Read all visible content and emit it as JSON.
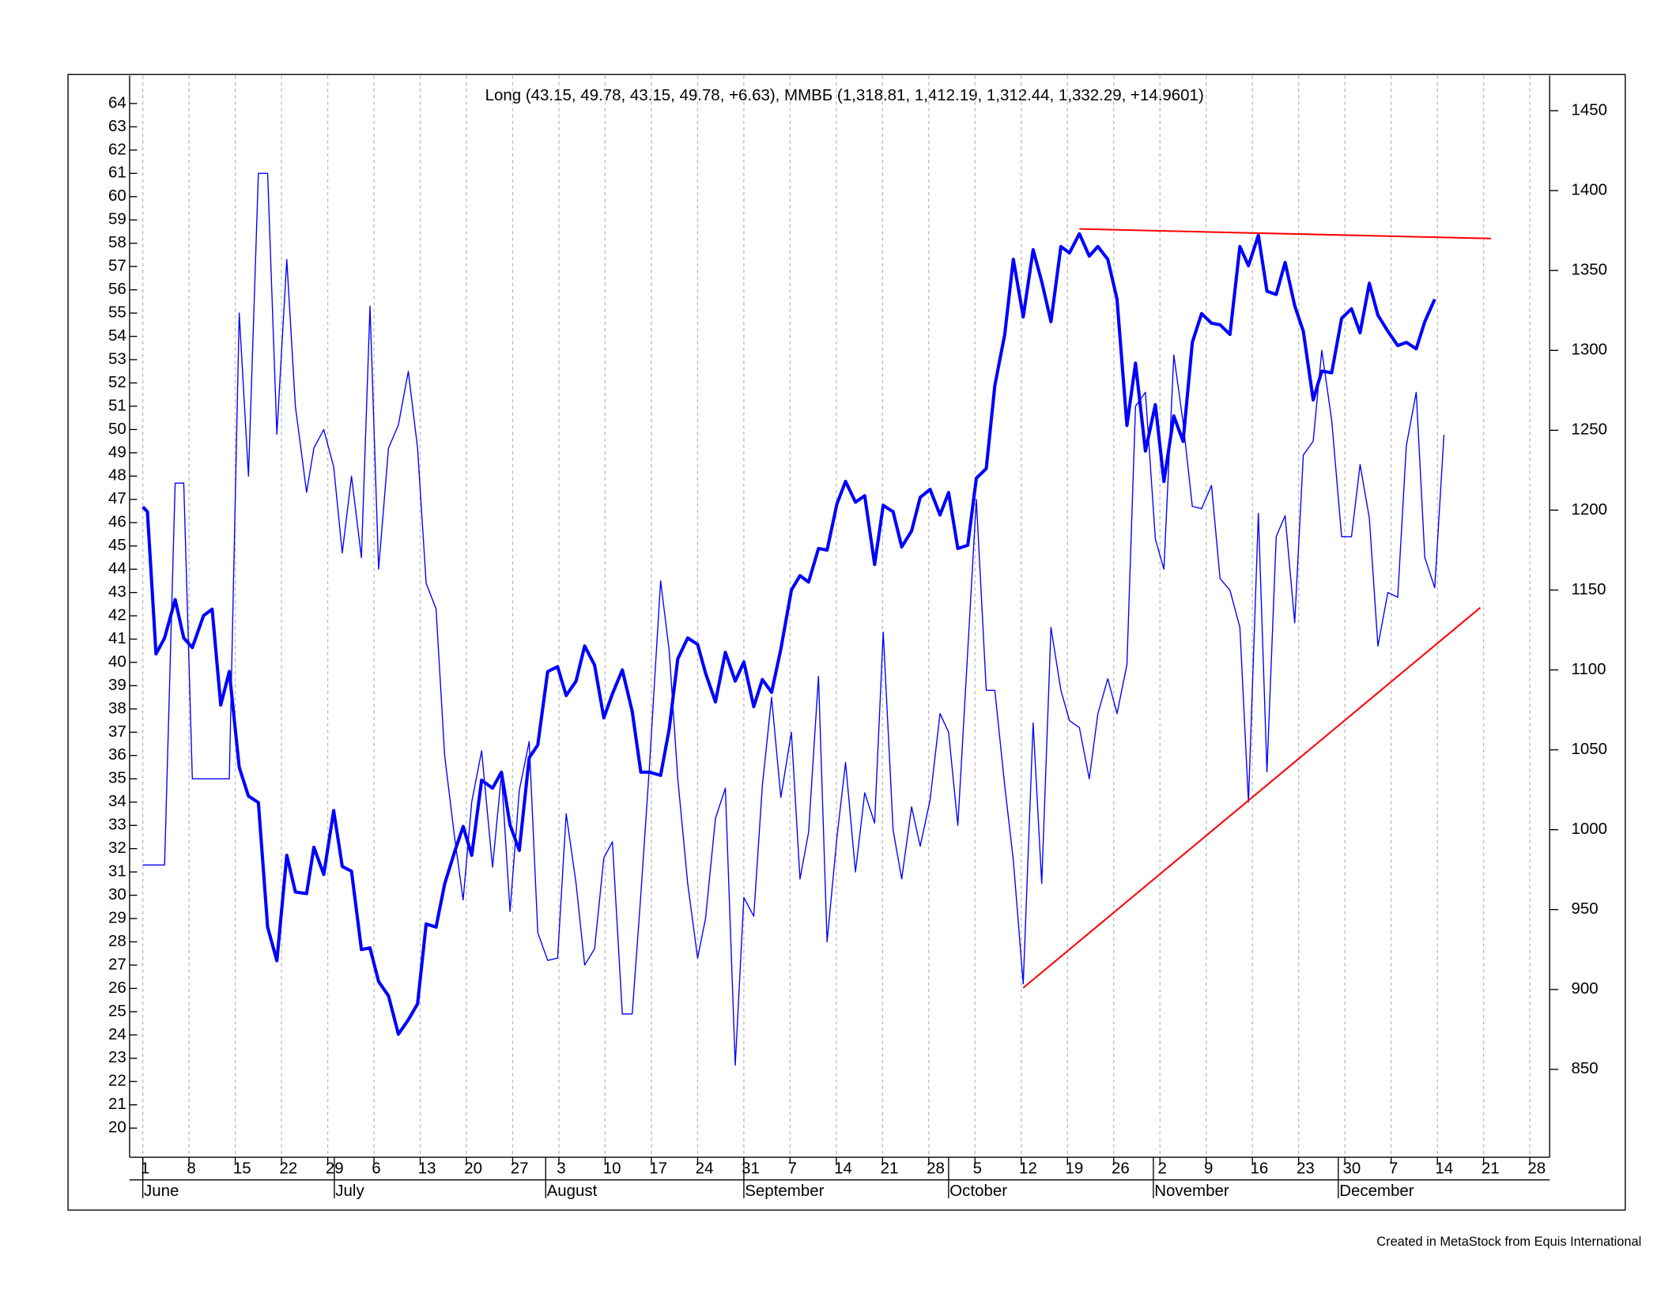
{
  "chart_data": {
    "type": "line",
    "title": "Long (43.15, 49.78, 43.15, 49.78, +6.63), ММВБ (1,318.81, 1,412.19, 1,312.44, 1,332.29, +14.9601)",
    "footer": "Created in MetaStock from Equis International",
    "x": [
      0,
      0.7,
      2,
      3.3,
      4.9,
      6.2,
      7.5,
      9.2,
      10.5,
      11.8,
      13.1,
      14.6,
      16,
      17.5,
      18.9,
      20.3,
      21.8,
      23.1,
      24.8,
      25.9,
      27.4,
      28.9,
      30.2,
      31.6,
      33.1,
      34.4,
      35.7,
      37.2,
      38.7,
      40.2,
      41.6,
      42.9,
      44.4,
      45.7,
      47.2,
      48.5,
      49.8,
      51.3,
      52.95,
      54.3,
      55.6,
      57,
      58.5,
      59.8,
      61.3,
      62.8,
      64.1,
      65.6,
      66.9,
      68.4,
      69.8,
      71.1,
      72.6,
      74.1,
      75.4,
      76.7,
      78.4,
      79.7,
      81,
      82.5,
      84,
      85.2,
      86.7,
      88.2,
      89.7,
      91,
      92.5,
      93.8,
      95.2,
      96.6,
      98.2,
      99.5,
      100.8,
      102.3,
      103.6,
      105.1,
      106.4,
      107.9,
      109.3,
      110.8,
      112.1,
      113.6,
      114.9,
      116.4,
      117.7,
      119.2,
      120.7,
      122,
      123.4,
      124.9,
      126.2,
      127.7,
      129,
      130.5,
      131.8,
      133.3,
      134.8,
      136.1,
      137.5,
      139,
      140.3,
      141.8,
      143.3,
      144.6,
      146.1,
      147.5,
      149,
      150.3,
      151.8,
      153.3,
      154.6,
      156.1,
      157.5,
      158.9,
      160.3,
      161.8,
      163.1,
      164.6,
      166.1,
      167.4,
      168.9,
      170.2,
      171.6,
      172.95,
      174.4,
      175.7,
      177.2,
      178.5,
      180,
      181.5,
      183,
      184.3,
      185.7,
      187,
      188.5,
      190,
      191.3,
      192.8,
      194.1,
      195.6,
      197
    ],
    "series": [
      {
        "color": "#0000ff",
        "width": 1,
        "axis": "y",
        "values": [
          31.3,
          31.3,
          31.3,
          31.3,
          47.7,
          47.7,
          35,
          35,
          35,
          35,
          35,
          55,
          48,
          61,
          61,
          49.8,
          57.3,
          51,
          47.3,
          49.2,
          50,
          48.4,
          44.7,
          48,
          44.5,
          55.3,
          44,
          49.2,
          50.2,
          52.5,
          49.2,
          43.4,
          42.3,
          36,
          32.5,
          29.8,
          34,
          36.2,
          31.2,
          35.2,
          29.3,
          34.5,
          36.6,
          28.4,
          27.2,
          27.3,
          33.5,
          30.5,
          27,
          27.7,
          31.6,
          32.3,
          24.9,
          24.9,
          30,
          35.5,
          43.5,
          40.5,
          35,
          30.5,
          27.3,
          29,
          33.3,
          34.6,
          22.7,
          29.9,
          29.1,
          34.7,
          38.5,
          34.2,
          37,
          30.7,
          32.7,
          39.4,
          28,
          32.5,
          35.7,
          31,
          34.4,
          33.1,
          41.3,
          32.8,
          30.7,
          33.8,
          32.1,
          34.1,
          37.8,
          37,
          33,
          40.5,
          47,
          38.8,
          38.8,
          34.7,
          31.5,
          26.2,
          37.4,
          30.5,
          41.5,
          38.8,
          37.5,
          37.2,
          35,
          37.8,
          39.3,
          37.8,
          39.9,
          51,
          51.6,
          45.3,
          44,
          53.2,
          50.3,
          46.7,
          46.6,
          47.6,
          43.6,
          43.1,
          41.5,
          34,
          46.4,
          35.3,
          45.4,
          46.3,
          41.7,
          48.9,
          49.5,
          53.4,
          50.4,
          45.4,
          45.4,
          48.5,
          46.2,
          40.7,
          43,
          42.8,
          49.3,
          51.6,
          44.5,
          43.2,
          49.78
        ]
      },
      {
        "color": "#0000ff",
        "width": 3,
        "axis": "y2",
        "values": [
          1202,
          1199,
          1110,
          1120,
          1144,
          1120,
          1114,
          1134,
          1138,
          1078,
          1099,
          1039,
          1021,
          1017,
          939,
          918,
          984,
          961,
          960,
          989,
          972,
          1012,
          977,
          974,
          925,
          926,
          905,
          896,
          872,
          881,
          891,
          941,
          939,
          966,
          986,
          1002,
          984,
          1031,
          1026,
          1036,
          1003,
          987,
          1045,
          1053,
          1099,
          1102,
          1084,
          1093,
          1115,
          1103,
          1070,
          1085,
          1100,
          1074,
          1036,
          1036,
          1034,
          1063,
          1107,
          1120,
          1116,
          1098,
          1080,
          1111,
          1093,
          1105,
          1077,
          1094,
          1086,
          1113,
          1150,
          1159,
          1155,
          1176,
          1175,
          1204,
          1218,
          1205,
          1209,
          1166,
          1203,
          1199,
          1177,
          1187,
          1208,
          1213,
          1197,
          1211,
          1176,
          1178,
          1220,
          1226,
          1278,
          1310,
          1357,
          1321,
          1363,
          1343,
          1318,
          1365,
          1361,
          1373,
          1359,
          1365,
          1357,
          1332,
          1253,
          1292,
          1237,
          1266,
          1218,
          1259,
          1243,
          1305,
          1323,
          1317,
          1316,
          1310,
          1365,
          1353,
          1372,
          1337,
          1335,
          1355,
          1328,
          1312,
          1269,
          1287,
          1286,
          1320,
          1326,
          1311,
          1342,
          1322,
          1312,
          1303,
          1305,
          1301,
          1318,
          1332,
          null
        ]
      }
    ],
    "trendlines": [
      {
        "color": "#ff0000",
        "axis": "y2",
        "x": [
          141.8,
          204.1
        ],
        "values": [
          1376,
          1370
        ]
      },
      {
        "color": "#ff0000",
        "axis": "y2",
        "x": [
          133.3,
          202.5
        ],
        "values": [
          901,
          1139
        ]
      }
    ],
    "xlim": [
      -2,
      213
    ],
    "xticks": [
      {
        "value": 0,
        "label": "1"
      },
      {
        "value": 7,
        "label": "8"
      },
      {
        "value": 14,
        "label": "15"
      },
      {
        "value": 21,
        "label": "22"
      },
      {
        "value": 28,
        "label": "29"
      },
      {
        "value": 35,
        "label": "6"
      },
      {
        "value": 42,
        "label": "13"
      },
      {
        "value": 49,
        "label": "20"
      },
      {
        "value": 56,
        "label": "27"
      },
      {
        "value": 63,
        "label": "3"
      },
      {
        "value": 70,
        "label": "10"
      },
      {
        "value": 77,
        "label": "17"
      },
      {
        "value": 84,
        "label": "24"
      },
      {
        "value": 91,
        "label": "31"
      },
      {
        "value": 98,
        "label": "7"
      },
      {
        "value": 105,
        "label": "14"
      },
      {
        "value": 112,
        "label": "21"
      },
      {
        "value": 119,
        "label": "28"
      },
      {
        "value": 126,
        "label": "5"
      },
      {
        "value": 133,
        "label": "12"
      },
      {
        "value": 140,
        "label": "19"
      },
      {
        "value": 147,
        "label": "26"
      },
      {
        "value": 154,
        "label": "2"
      },
      {
        "value": 161,
        "label": "9"
      },
      {
        "value": 168,
        "label": "16"
      },
      {
        "value": 175,
        "label": "23"
      },
      {
        "value": 182,
        "label": "30"
      },
      {
        "value": 189,
        "label": "7"
      },
      {
        "value": 196,
        "label": "14"
      },
      {
        "value": 203,
        "label": "21"
      },
      {
        "value": 210,
        "label": "28"
      }
    ],
    "months": [
      {
        "value": 0,
        "label": "June"
      },
      {
        "value": 29,
        "label": "July"
      },
      {
        "value": 61,
        "label": "August"
      },
      {
        "value": 91,
        "label": "September"
      },
      {
        "value": 122,
        "label": "October"
      },
      {
        "value": 153,
        "label": "November"
      },
      {
        "value": 181,
        "label": "December"
      }
    ],
    "ylim": [
      18.75,
      65.2
    ],
    "yticks": [
      20,
      21,
      22,
      23,
      24,
      25,
      26,
      27,
      28,
      29,
      30,
      31,
      32,
      33,
      34,
      35,
      36,
      37,
      38,
      39,
      40,
      41,
      42,
      43,
      44,
      45,
      46,
      47,
      48,
      49,
      50,
      51,
      52,
      53,
      54,
      55,
      56,
      57,
      58,
      59,
      60,
      61,
      62,
      63,
      64
    ],
    "y2lim": [
      795,
      1472
    ],
    "y2ticks": [
      850,
      900,
      950,
      1000,
      1050,
      1100,
      1150,
      1200,
      1250,
      1300,
      1350,
      1400,
      1450
    ],
    "grid": true
  }
}
